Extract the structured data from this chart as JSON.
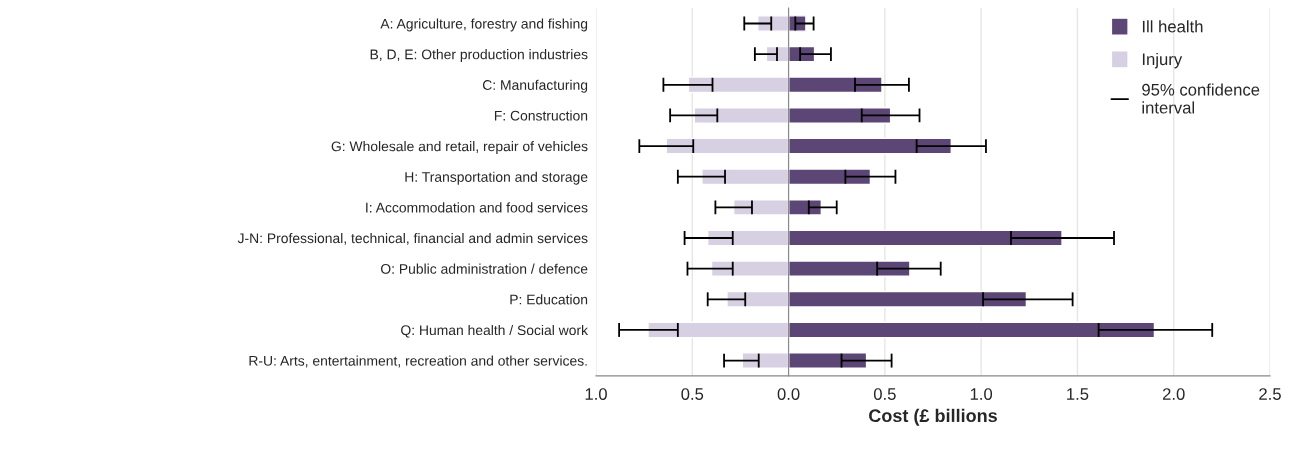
{
  "chart_data": {
    "type": "bar",
    "orientation": "horizontal",
    "stacked": true,
    "categories": [
      "A: Agriculture, forestry and fishing",
      "B, D, E: Other production industries",
      "C: Manufacturing",
      "F: Construction",
      "G: Wholesale and retail, repair of vehicles",
      "H: Transportation and storage",
      "I: Accommodation and food services",
      "J-N: Professional, technical, financial and admin services",
      "O: Public administration / defence",
      "P: Education",
      "Q: Human health / Social work",
      "R-U: Arts, entertainment, recreation and other services."
    ],
    "series": [
      {
        "name": "Ill health",
        "color": "#5c4675",
        "values": [
          0.09,
          0.135,
          0.485,
          0.53,
          0.845,
          0.425,
          0.17,
          1.42,
          0.63,
          1.235,
          1.9,
          0.405
        ],
        "errors": [
          [
            0.035,
            0.13
          ],
          [
            0.06,
            0.22
          ],
          [
            0.345,
            0.625
          ],
          [
            0.38,
            0.68
          ],
          [
            0.665,
            1.025
          ],
          [
            0.295,
            0.555
          ],
          [
            0.105,
            0.25
          ],
          [
            1.155,
            1.69
          ],
          [
            0.46,
            0.79
          ],
          [
            1.01,
            1.475
          ],
          [
            1.61,
            2.2
          ],
          [
            0.275,
            0.535
          ]
        ]
      },
      {
        "name": "Injury",
        "color": "#d7cfe2",
        "values": [
          -0.16,
          -0.115,
          -0.52,
          -0.49,
          -0.635,
          -0.45,
          -0.285,
          -0.42,
          -0.4,
          -0.32,
          -0.73,
          -0.24
        ],
        "errors": [
          [
            -0.23,
            -0.09
          ],
          [
            -0.175,
            -0.06
          ],
          [
            -0.65,
            -0.395
          ],
          [
            -0.615,
            -0.37
          ],
          [
            -0.775,
            -0.495
          ],
          [
            -0.575,
            -0.33
          ],
          [
            -0.38,
            -0.19
          ],
          [
            -0.54,
            -0.29
          ],
          [
            -0.525,
            -0.29
          ],
          [
            -0.42,
            -0.225
          ],
          [
            -0.88,
            -0.575
          ],
          [
            -0.335,
            -0.155
          ]
        ]
      }
    ],
    "xlabel": "Cost (£ billions",
    "xlim": [
      -1.0,
      2.5
    ],
    "xticks": [
      {
        "value": -1.0,
        "label": "1.0"
      },
      {
        "value": -0.5,
        "label": "0.5"
      },
      {
        "value": 0.0,
        "label": "0.0"
      },
      {
        "value": 0.5,
        "label": "0.5"
      },
      {
        "value": 1.0,
        "label": "1.0"
      },
      {
        "value": 1.5,
        "label": "1.5"
      },
      {
        "value": 2.0,
        "label": "2.0"
      },
      {
        "value": 2.5,
        "label": "2.5"
      }
    ],
    "annotations": [
      "95% confidence\ninterval"
    ],
    "grid": "x",
    "legend": "top right"
  }
}
